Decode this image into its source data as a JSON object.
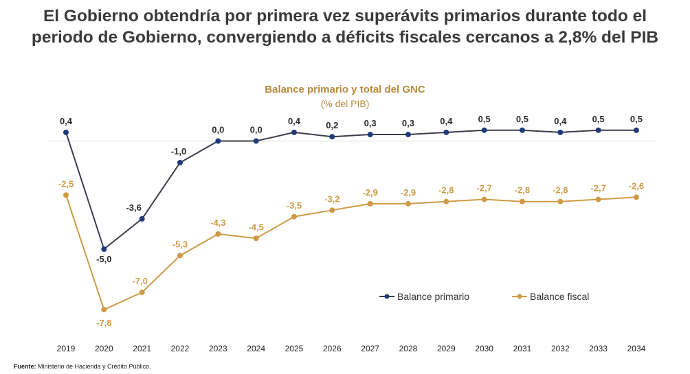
{
  "headline": {
    "line1": "El Gobierno obtendría por primera vez superávits primarios durante todo el",
    "line2": "periodo de Gobierno, convergiendo a déficits fiscales cercanos a 2,8% del PIB"
  },
  "footnote": {
    "label": "Fuente:",
    "text": " Ministerio de Hacienda y Crédito Público."
  },
  "colors": {
    "primario": "#1f3a7a",
    "primario_line": "#3b3b4a",
    "fiscal": "#cf9a45",
    "title": "#b98a3e",
    "axis": "#d9d9d9"
  },
  "chart_data": {
    "type": "line",
    "title": "Balance primario y total del GNC",
    "subtitle": "(% del PIB)",
    "categories": [
      "2019",
      "2020",
      "2021",
      "2022",
      "2023",
      "2024",
      "2025",
      "2026",
      "2027",
      "2028",
      "2029",
      "2030",
      "2031",
      "2032",
      "2033",
      "2034"
    ],
    "series": [
      {
        "name": "Balance primario",
        "values": [
          0.4,
          -5.0,
          -3.6,
          -1.0,
          0.0,
          0.0,
          0.4,
          0.2,
          0.3,
          0.3,
          0.4,
          0.5,
          0.5,
          0.4,
          0.5,
          0.5
        ],
        "labels": [
          "0,4",
          "-5,0",
          "-3,6",
          "-1,0",
          "0,0",
          "0,0",
          "0,4",
          "0,2",
          "0,3",
          "0,3",
          "0,4",
          "0,5",
          "0,5",
          "0,4",
          "0,5",
          "0,5"
        ]
      },
      {
        "name": "Balance fiscal",
        "values": [
          -2.5,
          -7.8,
          -7.0,
          -5.3,
          -4.3,
          -4.5,
          -3.5,
          -3.2,
          -2.9,
          -2.9,
          -2.8,
          -2.7,
          -2.8,
          -2.8,
          -2.7,
          -2.6
        ],
        "labels": [
          "-2,5",
          "-7,8",
          "-7,0",
          "-5,3",
          "-4,3",
          "-4,5",
          "-3,5",
          "-3,2",
          "-2,9",
          "-2,9",
          "-2,8",
          "-2,7",
          "-2,8",
          "-2,8",
          "-2,7",
          "-2,6"
        ]
      }
    ],
    "legend_position": "bottom-right",
    "grid": false
  }
}
